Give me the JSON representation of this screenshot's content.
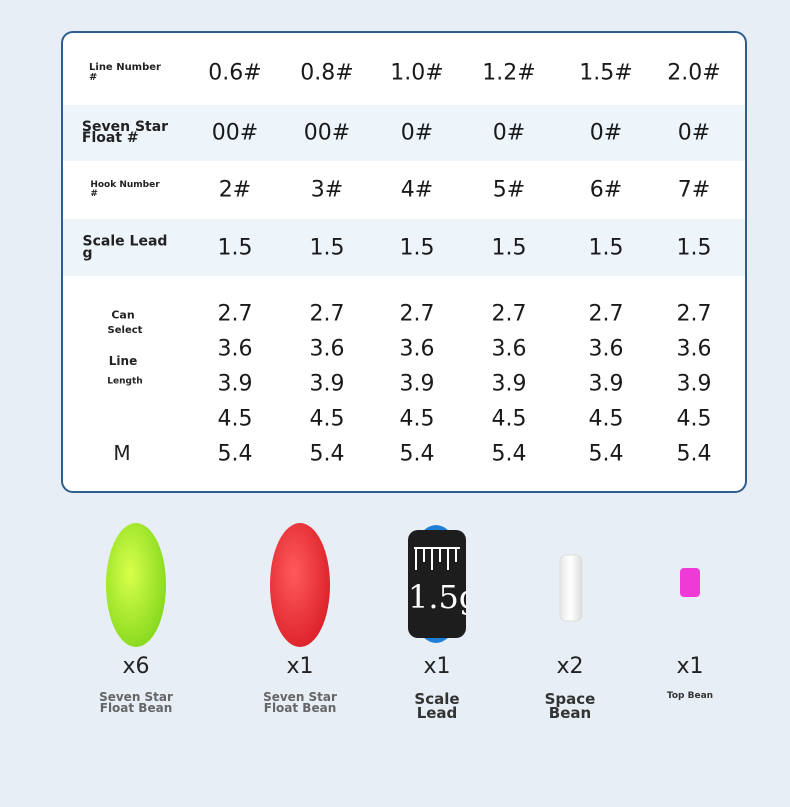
{
  "table": {
    "rows": [
      {
        "label": [
          "Line Number",
          "#"
        ],
        "cells": [
          "0.6#",
          "0.8#",
          "1.0#",
          "1.2#",
          "1.5#",
          "2.0#"
        ]
      },
      {
        "label": [
          "Seven Star",
          "Float #"
        ],
        "cells": [
          "00#",
          "00#",
          "0#",
          "0#",
          "0#",
          "0#"
        ]
      },
      {
        "label": [
          "Hook Number",
          "#"
        ],
        "cells": [
          "2#",
          "3#",
          "4#",
          "5#",
          "6#",
          "7#"
        ]
      },
      {
        "label": [
          "Scale Lead",
          "g"
        ],
        "cells": [
          "1.5",
          "1.5",
          "1.5",
          "1.5",
          "1.5",
          "1.5"
        ]
      },
      {
        "label": [
          "Can",
          "Select",
          "Line",
          "Length",
          "M"
        ],
        "cells": [
          [
            "2.7",
            "3.6",
            "3.9",
            "4.5",
            "5.4"
          ],
          [
            "2.7",
            "3.6",
            "3.9",
            "4.5",
            "5.4"
          ],
          [
            "2.7",
            "3.6",
            "3.9",
            "4.5",
            "5.4"
          ],
          [
            "2.7",
            "3.6",
            "3.9",
            "4.5",
            "5.4"
          ],
          [
            "2.7",
            "3.6",
            "3.9",
            "4.5",
            "5.4"
          ],
          [
            "2.7",
            "3.6",
            "3.9",
            "4.5",
            "5.4"
          ]
        ]
      }
    ]
  },
  "items": [
    {
      "count": "x6",
      "label": [
        "Seven Star",
        "Float Bean"
      ]
    },
    {
      "count": "x1",
      "label": [
        "Seven Star",
        "Float Bean"
      ]
    },
    {
      "count": "x1",
      "label": [
        "Scale",
        "Lead"
      ],
      "mark": "1.5g"
    },
    {
      "count": "x2",
      "label": [
        "Space",
        "Bean"
      ]
    },
    {
      "count": "x1",
      "label": [
        "Top Bean"
      ]
    }
  ]
}
